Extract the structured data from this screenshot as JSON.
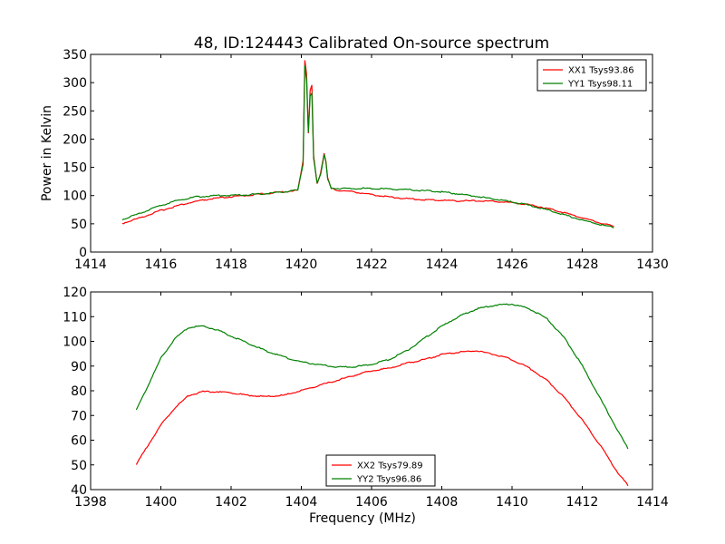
{
  "title": "48, ID:124443 Calibrated On-source spectrum",
  "chart_data": [
    {
      "type": "line",
      "ylabel": "Power in Kelvin",
      "xlabel": "",
      "xlim": [
        1414,
        1430
      ],
      "ylim": [
        0,
        350
      ],
      "xticks": [
        1414,
        1416,
        1418,
        1420,
        1422,
        1424,
        1426,
        1428,
        1430
      ],
      "yticks": [
        0,
        50,
        100,
        150,
        200,
        250,
        300,
        350
      ],
      "legend_position": "top-right",
      "series": [
        {
          "name": "XX1 Tsys93.86",
          "color": "#ff0000",
          "x": [
            1414.9,
            1415.5,
            1416,
            1416.5,
            1417,
            1417.5,
            1418,
            1418.5,
            1419,
            1419.5,
            1419.9,
            1420.05,
            1420.1,
            1420.15,
            1420.2,
            1420.25,
            1420.3,
            1420.35,
            1420.45,
            1420.55,
            1420.65,
            1420.7,
            1420.75,
            1420.85,
            1421,
            1421.5,
            1422,
            1422.5,
            1423,
            1423.5,
            1424,
            1424.5,
            1425,
            1425.5,
            1426,
            1426.5,
            1427,
            1427.5,
            1428,
            1428.5,
            1428.9
          ],
          "y": [
            50,
            62,
            73,
            82,
            89,
            94,
            97,
            100,
            103,
            106,
            109,
            160,
            340,
            315,
            210,
            285,
            295,
            170,
            120,
            140,
            175,
            160,
            130,
            112,
            109,
            106,
            101,
            97,
            94,
            92,
            91,
            90,
            90,
            89,
            87,
            83,
            77,
            69,
            60,
            51,
            45
          ]
        },
        {
          "name": "YY1 Tsys98.11",
          "color": "#008000",
          "x": [
            1414.9,
            1415.5,
            1416,
            1416.5,
            1417,
            1417.5,
            1418,
            1418.5,
            1419,
            1419.5,
            1419.9,
            1420.05,
            1420.1,
            1420.15,
            1420.2,
            1420.25,
            1420.3,
            1420.35,
            1420.45,
            1420.55,
            1420.65,
            1420.7,
            1420.75,
            1420.85,
            1421,
            1421.5,
            1422,
            1422.5,
            1423,
            1423.5,
            1424,
            1424.5,
            1425,
            1425.5,
            1426,
            1426.5,
            1427,
            1427.5,
            1428,
            1428.5,
            1428.9
          ],
          "y": [
            57,
            70,
            82,
            91,
            97,
            99,
            100,
            101,
            103,
            106,
            109,
            155,
            330,
            305,
            210,
            275,
            280,
            165,
            122,
            138,
            172,
            158,
            128,
            113,
            112,
            112,
            112,
            111,
            110,
            108,
            106,
            102,
            98,
            93,
            88,
            82,
            74,
            65,
            56,
            48,
            43
          ]
        }
      ]
    },
    {
      "type": "line",
      "ylabel": "",
      "xlabel": "Frequency (MHz)",
      "xlim": [
        1398,
        1414
      ],
      "ylim": [
        40,
        120
      ],
      "xticks": [
        1398,
        1400,
        1402,
        1404,
        1406,
        1408,
        1410,
        1412,
        1414
      ],
      "yticks": [
        40,
        50,
        60,
        70,
        80,
        90,
        100,
        110,
        120
      ],
      "legend_position": "bottom-center",
      "series": [
        {
          "name": "XX2 Tsys79.89",
          "color": "#ff0000",
          "x": [
            1399.3,
            1399.6,
            1400,
            1400.4,
            1400.8,
            1401.2,
            1401.6,
            1402,
            1402.5,
            1403,
            1403.5,
            1404,
            1404.5,
            1405,
            1405.5,
            1406,
            1406.5,
            1407,
            1407.5,
            1408,
            1408.5,
            1409,
            1409.5,
            1410,
            1410.5,
            1411,
            1411.5,
            1412,
            1412.5,
            1413,
            1413.3
          ],
          "y": [
            50,
            57,
            66,
            73,
            78,
            79.5,
            79.5,
            79,
            78,
            77.5,
            78,
            80,
            82,
            84,
            86,
            88,
            89,
            91,
            92.5,
            94.5,
            95.5,
            96,
            94.5,
            92.5,
            89,
            84,
            77,
            68,
            58,
            47,
            41.5
          ]
        },
        {
          "name": "YY2 Tsys96.86",
          "color": "#008000",
          "x": [
            1399.3,
            1399.6,
            1400,
            1400.4,
            1400.8,
            1401.2,
            1401.6,
            1402,
            1402.5,
            1403,
            1403.5,
            1404,
            1404.5,
            1405,
            1405.5,
            1406,
            1406.5,
            1407,
            1407.5,
            1408,
            1408.5,
            1409,
            1409.5,
            1410,
            1410.5,
            1411,
            1411.5,
            1412,
            1412.5,
            1413,
            1413.3
          ],
          "y": [
            72,
            81,
            93,
            101,
            105.5,
            106,
            104.5,
            102,
            99,
            96,
            93.5,
            91.5,
            90.5,
            89.5,
            89.5,
            90.5,
            92.5,
            96,
            101,
            106,
            110,
            113,
            114.5,
            115,
            113,
            109,
            101,
            90,
            77,
            64,
            56.5
          ]
        }
      ]
    }
  ]
}
